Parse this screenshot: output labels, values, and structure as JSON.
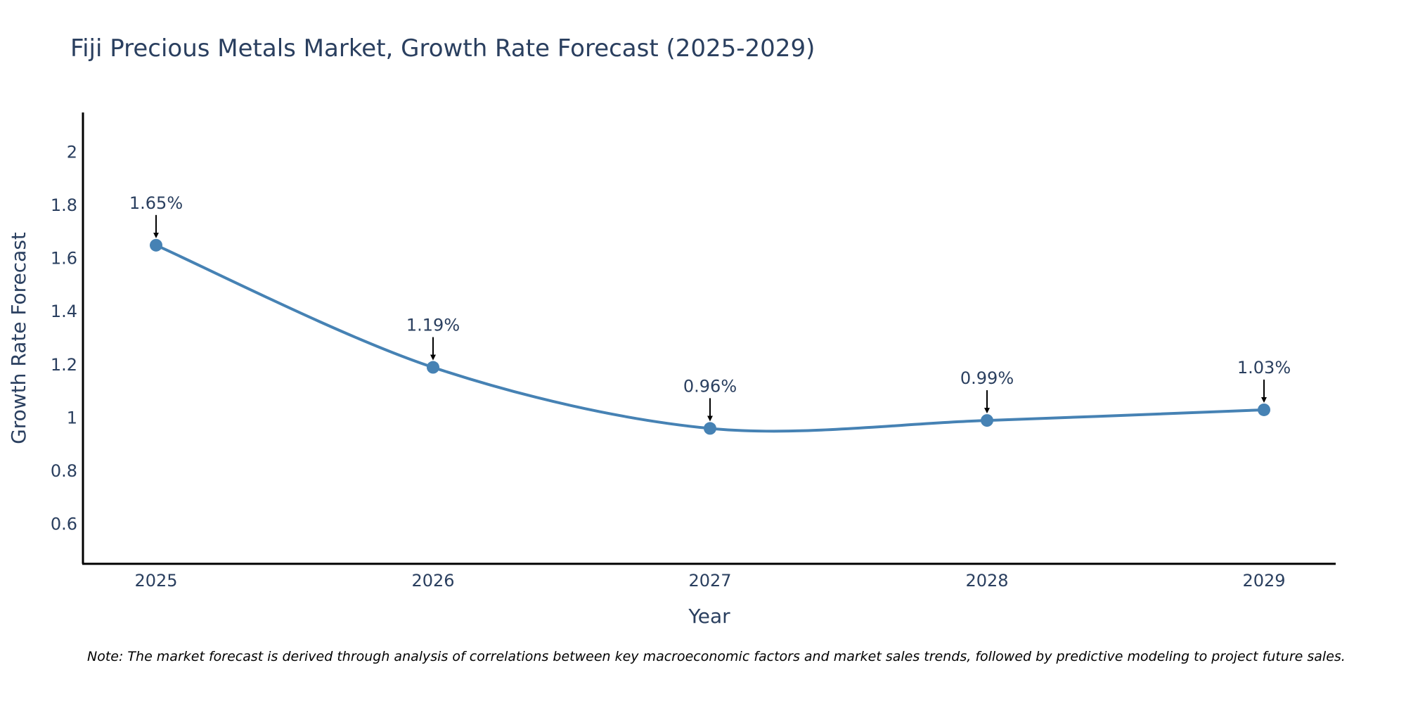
{
  "chart_data": {
    "type": "line",
    "title": "Fiji Precious Metals Market, Growth Rate Forecast (2025-2029)",
    "xlabel": "Year",
    "ylabel": "Growth Rate Forecast",
    "x": [
      "2025",
      "2026",
      "2027",
      "2028",
      "2029"
    ],
    "series": [
      {
        "name": "Growth Rate Forecast",
        "values": [
          1.65,
          1.19,
          0.96,
          0.99,
          1.03
        ],
        "labels": [
          "1.65%",
          "1.19%",
          "0.96%",
          "0.99%",
          "1.03%"
        ]
      }
    ],
    "ylim": [
      0.45,
      2.15
    ],
    "yticks": [
      0.6,
      0.8,
      1,
      1.2,
      1.4,
      1.6,
      1.8,
      2
    ],
    "ytick_labels": [
      "0.6",
      "0.8",
      "1",
      "1.2",
      "1.4",
      "1.6",
      "1.8",
      "2"
    ],
    "grid": false,
    "line_color": "#4682b4",
    "note": "Note: The market forecast is derived through analysis of correlations between key macroeconomic factors and market sales trends, followed by predictive modeling to project future sales."
  }
}
